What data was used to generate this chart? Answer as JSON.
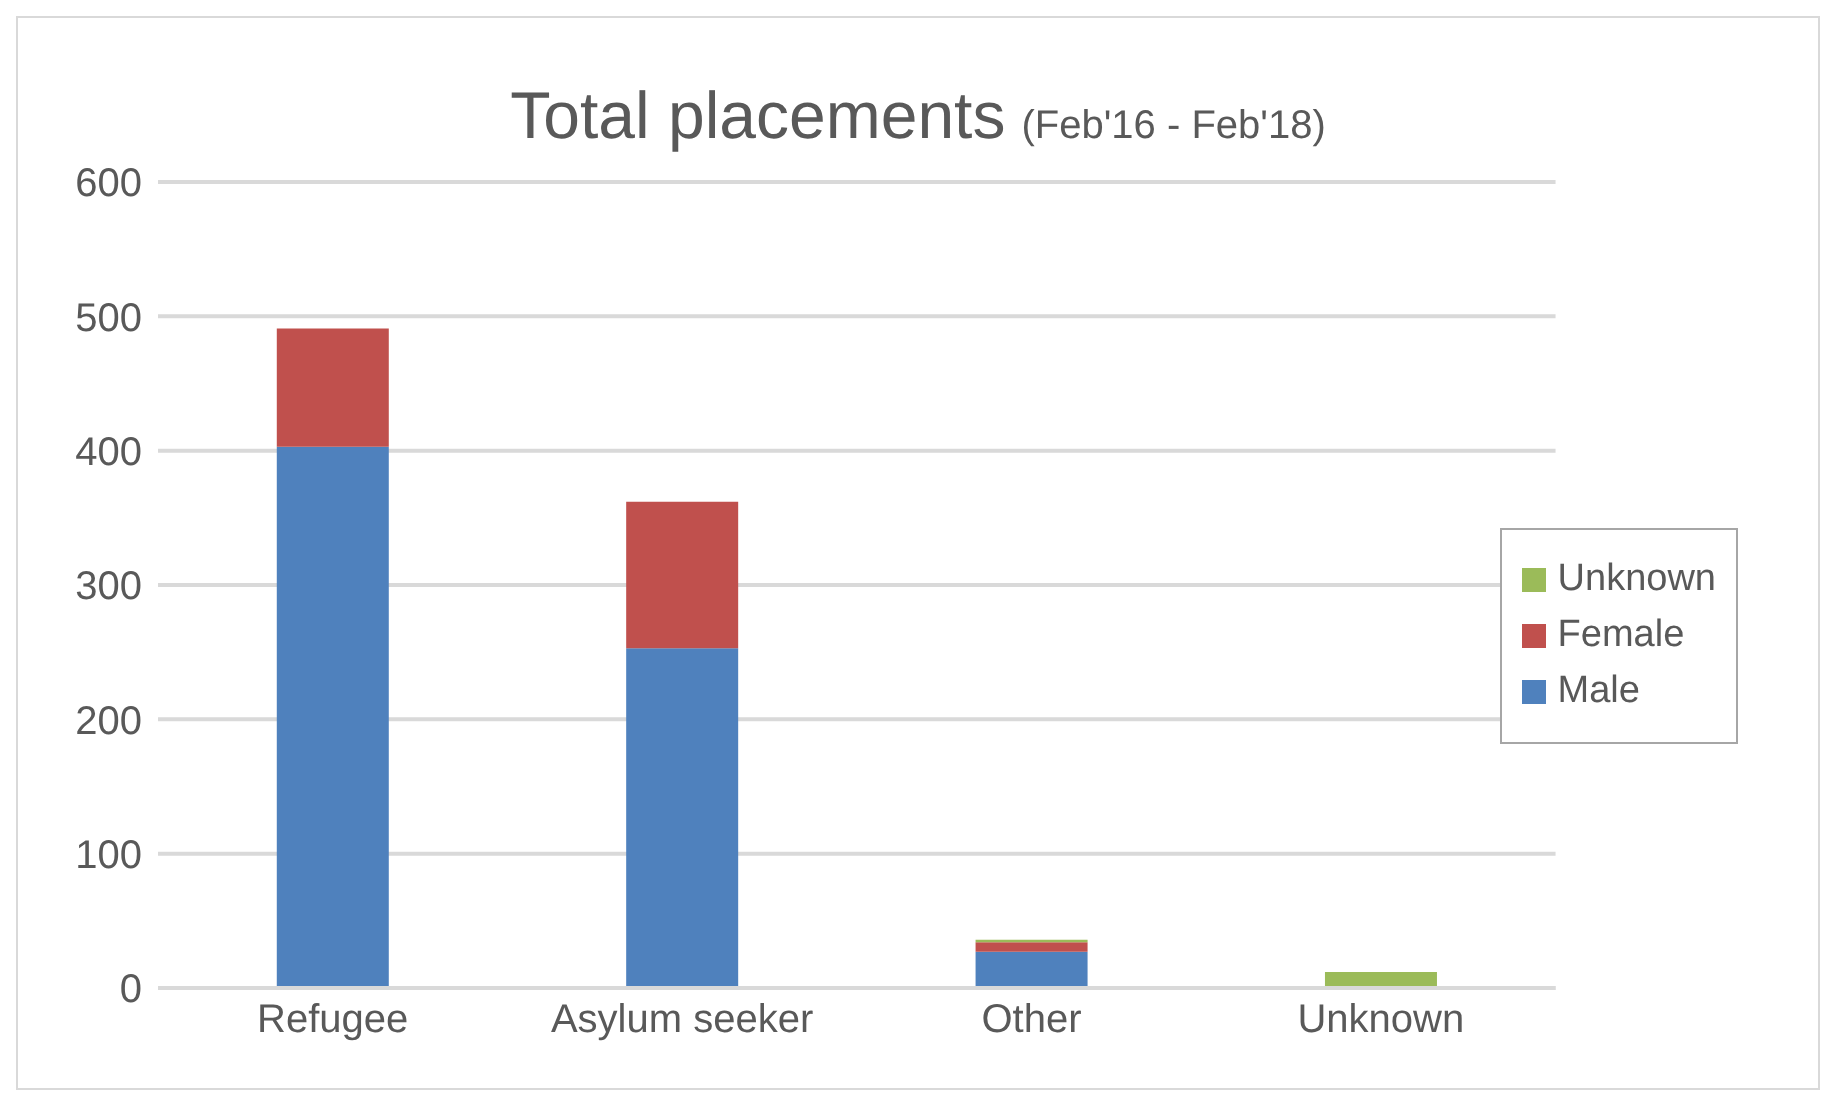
{
  "chart_data": {
    "type": "bar",
    "title": "Total placements",
    "subtitle": "(Feb'16 - Feb'18)",
    "categories": [
      "Refugee",
      "Asylum seeker",
      "Other",
      "Unknown"
    ],
    "stacked": true,
    "series": [
      {
        "name": "Male",
        "color": "#4f81bd",
        "values": [
          403,
          253,
          27,
          0
        ]
      },
      {
        "name": "Female",
        "color": "#c0504d",
        "values": [
          88,
          109,
          7,
          0
        ]
      },
      {
        "name": "Unknown",
        "color": "#9bbb59",
        "values": [
          0,
          0,
          2,
          12
        ]
      }
    ],
    "ylim": [
      0,
      600
    ],
    "yticks": [
      0,
      100,
      200,
      300,
      400,
      500,
      600
    ],
    "grid": "y",
    "legend": "right"
  }
}
